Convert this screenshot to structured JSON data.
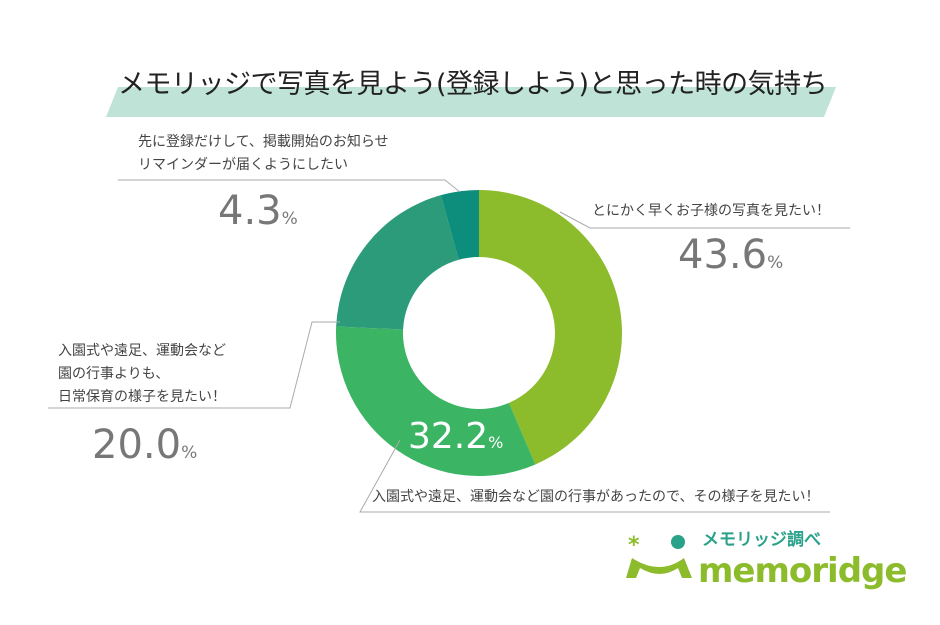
{
  "chart_data": {
    "type": "pie",
    "donut": true,
    "title": "メモリッジで写真を見よう(登録しよう)と思った時の気持ち",
    "unit": "%",
    "slices": [
      {
        "label": "とにかく早くお子様の写真を見たい！",
        "value": 43.6,
        "display": "43.6",
        "color": "#8cbb2c"
      },
      {
        "label": "入園式や遠足、運動会など園の行事があったので、その様子を見たい！",
        "value": 32.2,
        "display": "32.2",
        "color": "#3bb464"
      },
      {
        "label_lines": [
          "入園式や遠足、運動会など",
          "園の行事よりも、",
          "日常保育の様子を見たい！"
        ],
        "value": 20.0,
        "display": "20.0",
        "color": "#2c9b79"
      },
      {
        "label_lines": [
          "先に登録だけして、掲載開始のお知らせ",
          "リマインダーが届くようにしたい"
        ],
        "value": 4.3,
        "display": "4.3",
        "color": "#0d8d7c"
      }
    ]
  },
  "logo": {
    "jp": "メモリッジ調べ",
    "en": "memoridge"
  }
}
